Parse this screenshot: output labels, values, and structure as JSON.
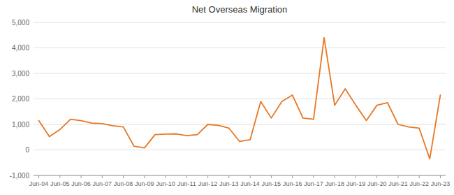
{
  "chart_data": {
    "type": "line",
    "title": "Net Overseas Migration",
    "categories": [
      "Jun-04",
      null,
      "Jun-05",
      null,
      "Jun-06",
      null,
      "Jun-07",
      null,
      "Jun-08",
      null,
      "Jun-09",
      null,
      "Jun-10",
      null,
      "Jun-11",
      null,
      "Jun-12",
      null,
      "Jun-13",
      null,
      "Jun-14",
      null,
      "Jun-15",
      null,
      "Jun-16",
      null,
      "Jun-17",
      null,
      "Jun-18",
      null,
      "Jun-19",
      null,
      "Jun-20",
      null,
      "Jun-21",
      null,
      "Jun-22",
      null,
      "Jun-23"
    ],
    "values": [
      1150,
      520,
      800,
      1200,
      1150,
      1050,
      1030,
      950,
      900,
      150,
      80,
      600,
      620,
      630,
      560,
      600,
      1000,
      960,
      850,
      330,
      400,
      1900,
      1250,
      1900,
      2150,
      1250,
      1200,
      4400,
      1750,
      2400,
      1750,
      1150,
      1750,
      1850,
      1000,
      900,
      850,
      -350,
      2150
    ],
    "color": "#E87722",
    "ylim": [
      -1000,
      5000
    ],
    "yticks": [
      {
        "value": -1000,
        "label": "-1,000"
      },
      0,
      {
        "value": 1000,
        "label": "1,000"
      },
      {
        "value": 2000,
        "label": "2,000"
      },
      {
        "value": 3000,
        "label": "3,000"
      },
      {
        "value": 4000,
        "label": "4,000"
      },
      {
        "value": 5000,
        "label": "5,000"
      }
    ],
    "grid": true
  }
}
